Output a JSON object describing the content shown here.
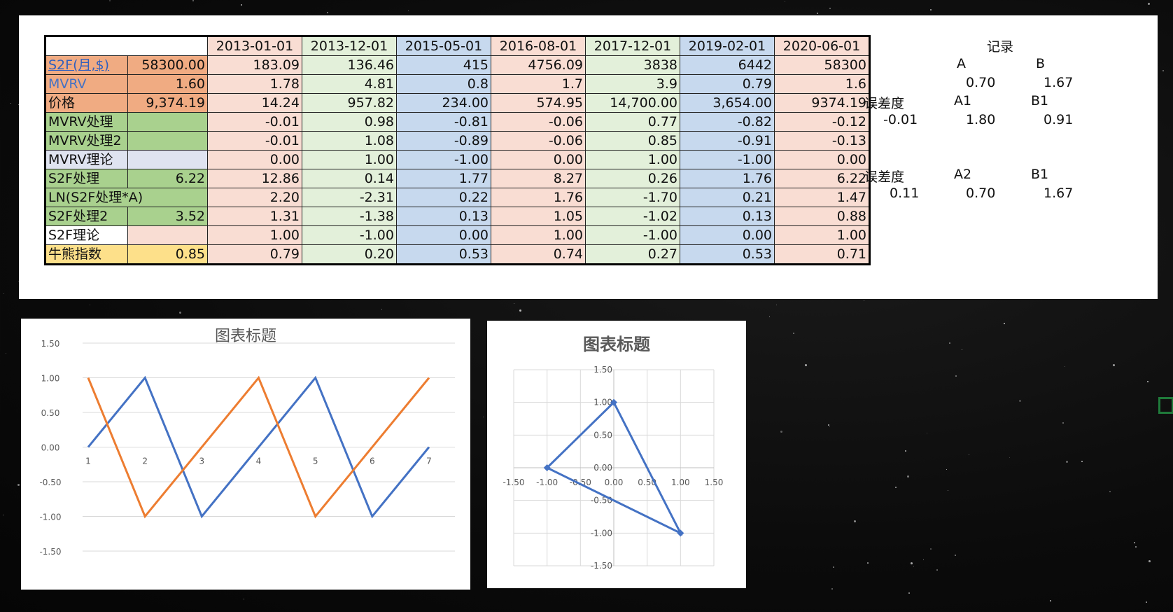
{
  "table": {
    "header": [
      "2013-01-01",
      "2013-12-01",
      "2015-05-01",
      "2016-08-01",
      "2017-12-01",
      "2019-02-01",
      "2020-06-01"
    ],
    "col_colors": [
      "c-pink",
      "c-green",
      "c-blue",
      "c-pink",
      "c-green",
      "c-blue",
      "c-pink"
    ],
    "rows": [
      {
        "label": "S2F(月,$)",
        "value": "58300.00",
        "cells": [
          "183.09",
          "136.46",
          "415",
          "4756.09",
          "3838",
          "6442",
          "58300"
        ]
      },
      {
        "label": "MVRV",
        "value": "1.60",
        "cells": [
          "1.78",
          "4.81",
          "0.8",
          "1.7",
          "3.9",
          "0.79",
          "1.6"
        ]
      },
      {
        "label": "价格",
        "value": "9,374.19",
        "cells": [
          "14.24",
          "957.82",
          "234.00",
          "574.95",
          "14,700.00",
          "3,654.00",
          "9374.19"
        ]
      },
      {
        "label": "MVRV处理",
        "value": "",
        "cells": [
          "-0.01",
          "0.98",
          "-0.81",
          "-0.06",
          "0.77",
          "-0.82",
          "-0.12"
        ]
      },
      {
        "label": "MVRV处理2",
        "value": "",
        "cells": [
          "-0.01",
          "1.08",
          "-0.89",
          "-0.06",
          "0.85",
          "-0.91",
          "-0.13"
        ]
      },
      {
        "label": "MVRV理论",
        "value": "",
        "cells": [
          "0.00",
          "1.00",
          "-1.00",
          "0.00",
          "1.00",
          "-1.00",
          "0.00"
        ]
      },
      {
        "label": "S2F处理",
        "value": "6.22",
        "cells": [
          "12.86",
          "0.14",
          "1.77",
          "8.27",
          "0.26",
          "1.76",
          "6.22"
        ]
      },
      {
        "label": "LN(S2F处理*A)",
        "value": "",
        "cells": [
          "2.20",
          "-2.31",
          "0.22",
          "1.76",
          "-1.70",
          "0.21",
          "1.47"
        ]
      },
      {
        "label": "S2F处理2",
        "value": "3.52",
        "cells": [
          "1.31",
          "-1.38",
          "0.13",
          "1.05",
          "-1.02",
          "0.13",
          "0.88"
        ]
      },
      {
        "label": "S2F理论",
        "value": "",
        "cells": [
          "1.00",
          "-1.00",
          "0.00",
          "1.00",
          "-1.00",
          "0.00",
          "1.00"
        ]
      },
      {
        "label": "牛熊指数",
        "value": "0.85",
        "cells": [
          "0.79",
          "0.20",
          "0.53",
          "0.74",
          "0.27",
          "0.53",
          "0.71"
        ]
      }
    ]
  },
  "record": {
    "title": "记录",
    "h_A": "A",
    "h_B": "B",
    "val_A": "0.70",
    "val_B": "1.67",
    "err1_label": "误差度",
    "h_A1": "A1",
    "h_B1": "B1",
    "err1_val": "-0.01",
    "val_A1": "1.80",
    "val_B1": "0.91",
    "err2_label": "误差度",
    "h_A2": "A2",
    "h_B1b": "B1",
    "err2_val": "0.11",
    "val_A2": "0.70",
    "val_B1b": "1.67"
  },
  "chart_data": [
    {
      "type": "line",
      "title": "图表标题",
      "categories": [
        "1",
        "2",
        "3",
        "4",
        "5",
        "6",
        "7"
      ],
      "series": [
        {
          "color": "#4472c4",
          "values": [
            0,
            1,
            -1,
            0,
            1,
            -1,
            0
          ]
        },
        {
          "color": "#ed7d31",
          "values": [
            1,
            -1,
            0,
            1,
            -1,
            0,
            1
          ]
        }
      ],
      "ylim": [
        -1.5,
        1.5
      ],
      "yticks": [
        "1.50",
        "1.00",
        "0.50",
        "0.00",
        "-0.50",
        "-1.00",
        "-1.50"
      ],
      "grid": true
    },
    {
      "type": "scatter",
      "title": "图表标题",
      "series": [
        {
          "color": "#4472c4",
          "points": [
            [
              0,
              1
            ],
            [
              1,
              -1
            ],
            [
              -1,
              0
            ],
            [
              0,
              1
            ]
          ]
        }
      ],
      "xlim": [
        -1.5,
        1.5
      ],
      "ylim": [
        -1.5,
        1.5
      ],
      "xticks": [
        "-1.50",
        "-1.00",
        "-0.50",
        "0.00",
        "0.50",
        "1.00",
        "1.50"
      ],
      "yticks": [
        "1.50",
        "1.00",
        "0.50",
        "0.00",
        "-0.50",
        "-1.00",
        "-1.50"
      ],
      "grid": true
    }
  ]
}
